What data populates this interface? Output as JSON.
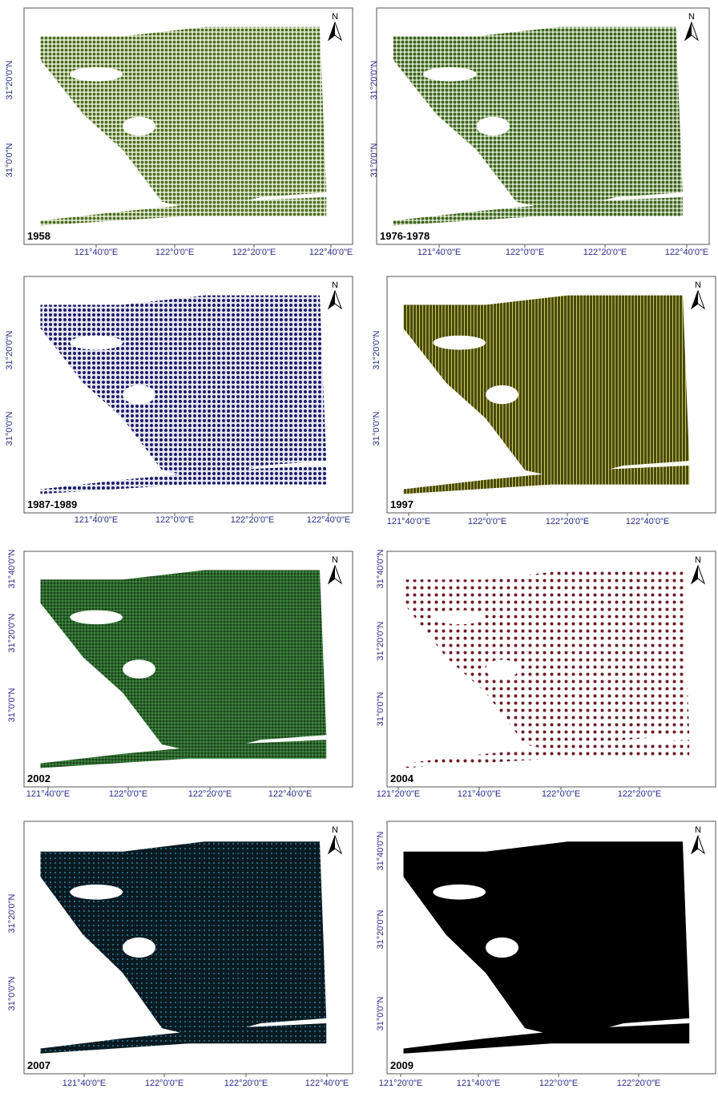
{
  "panels": [
    {
      "label": "1958",
      "north": "N",
      "x_labels": [
        "121°40'0\"E",
        "122°0'0\"E",
        "122°20'0\"E",
        "122°40'0\"E"
      ],
      "y_labels": [
        "31°20'0\"N",
        "31°0'0\"N"
      ]
    },
    {
      "label": "1976-1978",
      "north": "N",
      "x_labels": [
        "121°40'0\"E",
        "122°0'0\"E",
        "122°20'0\"E",
        "122°40'0\"E"
      ],
      "y_labels": [
        "31°20'0\"N",
        "31°0'0\"N"
      ]
    },
    {
      "label": "1987-1989",
      "north": "N",
      "x_labels": [
        "121°40'0\"E",
        "122°0'0\"E",
        "122°20'0\"E",
        "122°40'0\"E"
      ],
      "y_labels": [
        "31°20'0\"N",
        "31°0'0\"N"
      ]
    },
    {
      "label": "1997",
      "north": "N",
      "x_labels": [
        "121°40'0\"E",
        "122°0'0\"E",
        "122°20'0\"E",
        "122°40'0\"E"
      ],
      "y_labels": [
        "31°20'0\"N",
        "31°0'0\"N"
      ]
    },
    {
      "label": "2002",
      "north": "N",
      "x_labels": [
        "121°40'0\"E",
        "122°0'0\"E",
        "122°20'0\"E",
        "122°40'0\"E"
      ],
      "y_labels": [
        "31°40'0\"N",
        "31°20'0\"N",
        "31°0'0\"N"
      ]
    },
    {
      "label": "2004",
      "north": "N",
      "x_labels": [
        "121°20'0\"E",
        "121°40'0\"E",
        "122°0'0\"E",
        "122°20'0\"E"
      ],
      "y_labels": [
        "31°40'0\"N",
        "31°20'0\"N",
        "31°0'0\"N"
      ]
    },
    {
      "label": "2007",
      "north": "N",
      "x_labels": [
        "121°40'0\"E",
        "122°0'0\"E",
        "122°20'0\"E",
        "122°40'0\"E"
      ],
      "y_labels": [
        "31°20'0\"N",
        "31°0'0\"N"
      ]
    },
    {
      "label": "2009",
      "north": "N",
      "x_labels": [
        "121°20'0\"E",
        "121°40'0\"E",
        "122°0'0\"E",
        "122°20'0\"E"
      ],
      "y_labels": [
        "31°40'0\"N",
        "31°20'0\"N",
        "31°0'0\"N"
      ]
    }
  ]
}
